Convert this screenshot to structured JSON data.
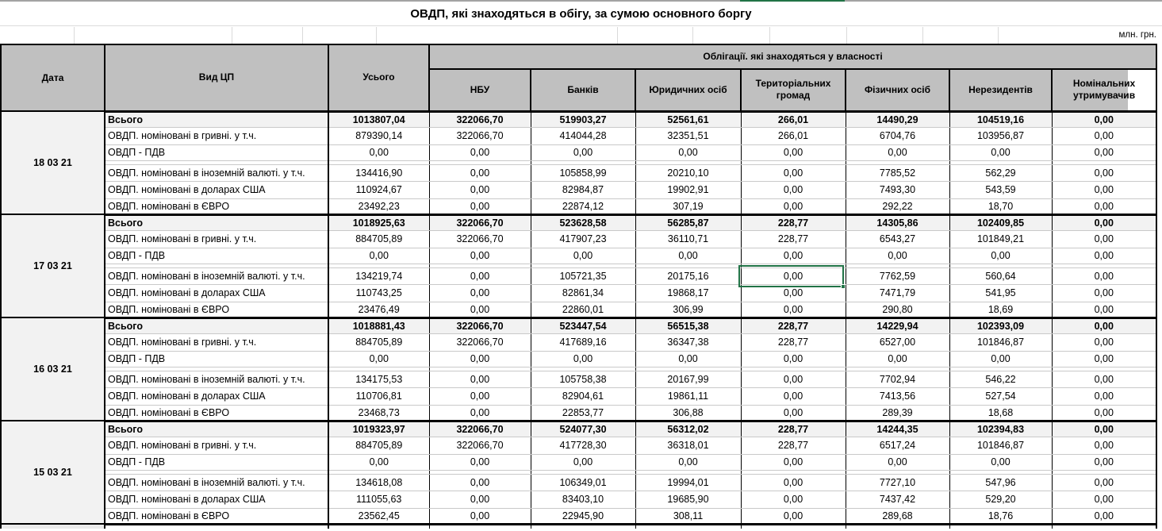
{
  "title": "ОВДП, які знаходяться в обігу, за сумою основного боргу",
  "units_label": "млн. грн.",
  "header": {
    "date": "Дата",
    "type": "Вид ЦП",
    "total": "Усього",
    "ownership_group": "Облігації. які знаходяться у власності",
    "owners": [
      "НБУ",
      "Банків",
      "Юридичних осіб",
      "Територіальних громад",
      "Фізичних осіб",
      "Нерезидентів",
      "Номінальних утримувачив"
    ]
  },
  "colors": {
    "selection_green": "#217346",
    "header_bg": "#c0c0c0",
    "subtotal_row_bg": "#f2f2f2",
    "date_cell_bg": "#ebebeb"
  },
  "selection": {
    "date": "17 03 21",
    "row_label": "ОВДП. номіновані в іноземній валюті. у т.ч.",
    "column": "Територіальних громад",
    "value": "0,00"
  },
  "groups": [
    {
      "date": "18 03 21",
      "rows": [
        {
          "label": "Всього",
          "values": [
            "1013807,04",
            "322066,70",
            "519903,27",
            "52561,61",
            "266,01",
            "14490,29",
            "104519,16",
            "0,00"
          ]
        },
        {
          "label": "ОВДП. номіновані в гривні. у т.ч.",
          "values": [
            "879390,14",
            "322066,70",
            "414044,28",
            "32351,51",
            "266,01",
            "6704,76",
            "103956,87",
            "0,00"
          ]
        },
        {
          "label": "ОВДП - ПДВ",
          "values": [
            "0,00",
            "0,00",
            "0,00",
            "0,00",
            "0,00",
            "0,00",
            "0,00",
            "0,00"
          ]
        },
        {
          "label": "ОВДП. номіновані в іноземній валюті. у т.ч.",
          "values": [
            "134416,90",
            "0,00",
            "105858,99",
            "20210,10",
            "0,00",
            "7785,52",
            "562,29",
            "0,00"
          ]
        },
        {
          "label": "ОВДП. номіновані в доларах США",
          "values": [
            "110924,67",
            "0,00",
            "82984,87",
            "19902,91",
            "0,00",
            "7493,30",
            "543,59",
            "0,00"
          ]
        },
        {
          "label": "ОВДП. номіновані в ЄВРО",
          "values": [
            "23492,23",
            "0,00",
            "22874,12",
            "307,19",
            "0,00",
            "292,22",
            "18,70",
            "0,00"
          ]
        }
      ]
    },
    {
      "date": "17 03 21",
      "rows": [
        {
          "label": "Всього",
          "values": [
            "1018925,63",
            "322066,70",
            "523628,58",
            "56285,87",
            "228,77",
            "14305,86",
            "102409,85",
            "0,00"
          ]
        },
        {
          "label": "ОВДП. номіновані в гривні. у т.ч.",
          "values": [
            "884705,89",
            "322066,70",
            "417907,23",
            "36110,71",
            "228,77",
            "6543,27",
            "101849,21",
            "0,00"
          ]
        },
        {
          "label": "ОВДП - ПДВ",
          "values": [
            "0,00",
            "0,00",
            "0,00",
            "0,00",
            "0,00",
            "0,00",
            "0,00",
            "0,00"
          ]
        },
        {
          "label": "ОВДП. номіновані в іноземній валюті. у т.ч.",
          "values": [
            "134219,74",
            "0,00",
            "105721,35",
            "20175,16",
            "0,00",
            "7762,59",
            "560,64",
            "0,00"
          ]
        },
        {
          "label": "ОВДП. номіновані в доларах США",
          "values": [
            "110743,25",
            "0,00",
            "82861,34",
            "19868,17",
            "0,00",
            "7471,79",
            "541,95",
            "0,00"
          ]
        },
        {
          "label": "ОВДП. номіновані в ЄВРО",
          "values": [
            "23476,49",
            "0,00",
            "22860,01",
            "306,99",
            "0,00",
            "290,80",
            "18,69",
            "0,00"
          ]
        }
      ]
    },
    {
      "date": "16 03 21",
      "rows": [
        {
          "label": "Всього",
          "values": [
            "1018881,43",
            "322066,70",
            "523447,54",
            "56515,38",
            "228,77",
            "14229,94",
            "102393,09",
            "0,00"
          ]
        },
        {
          "label": "ОВДП. номіновані в гривні. у т.ч.",
          "values": [
            "884705,89",
            "322066,70",
            "417689,16",
            "36347,38",
            "228,77",
            "6527,00",
            "101846,87",
            "0,00"
          ]
        },
        {
          "label": "ОВДП - ПДВ",
          "values": [
            "0,00",
            "0,00",
            "0,00",
            "0,00",
            "0,00",
            "0,00",
            "0,00",
            "0,00"
          ]
        },
        {
          "label": "ОВДП. номіновані в іноземній валюті. у т.ч.",
          "values": [
            "134175,53",
            "0,00",
            "105758,38",
            "20167,99",
            "0,00",
            "7702,94",
            "546,22",
            "0,00"
          ]
        },
        {
          "label": "ОВДП. номіновані в доларах США",
          "values": [
            "110706,81",
            "0,00",
            "82904,61",
            "19861,11",
            "0,00",
            "7413,56",
            "527,54",
            "0,00"
          ]
        },
        {
          "label": "ОВДП. номіновані в ЄВРО",
          "values": [
            "23468,73",
            "0,00",
            "22853,77",
            "306,88",
            "0,00",
            "289,39",
            "18,68",
            "0,00"
          ]
        }
      ]
    },
    {
      "date": "15 03 21",
      "rows": [
        {
          "label": "Всього",
          "values": [
            "1019323,97",
            "322066,70",
            "524077,30",
            "56312,02",
            "228,77",
            "14244,35",
            "102394,83",
            "0,00"
          ]
        },
        {
          "label": "ОВДП. номіновані в гривні. у т.ч.",
          "values": [
            "884705,89",
            "322066,70",
            "417728,30",
            "36318,01",
            "228,77",
            "6517,24",
            "101846,87",
            "0,00"
          ]
        },
        {
          "label": "ОВДП - ПДВ",
          "values": [
            "0,00",
            "0,00",
            "0,00",
            "0,00",
            "0,00",
            "0,00",
            "0,00",
            "0,00"
          ]
        },
        {
          "label": "ОВДП. номіновані в іноземній валюті. у т.ч.",
          "values": [
            "134618,08",
            "0,00",
            "106349,01",
            "19994,01",
            "0,00",
            "7727,10",
            "547,96",
            "0,00"
          ]
        },
        {
          "label": "ОВДП. номіновані в доларах США",
          "values": [
            "111055,63",
            "0,00",
            "83403,10",
            "19685,90",
            "0,00",
            "7437,42",
            "529,20",
            "0,00"
          ]
        },
        {
          "label": "ОВДП. номіновані в ЄВРО",
          "values": [
            "23562,45",
            "0,00",
            "22945,90",
            "308,11",
            "0,00",
            "289,68",
            "18,76",
            "0,00"
          ]
        }
      ]
    }
  ]
}
